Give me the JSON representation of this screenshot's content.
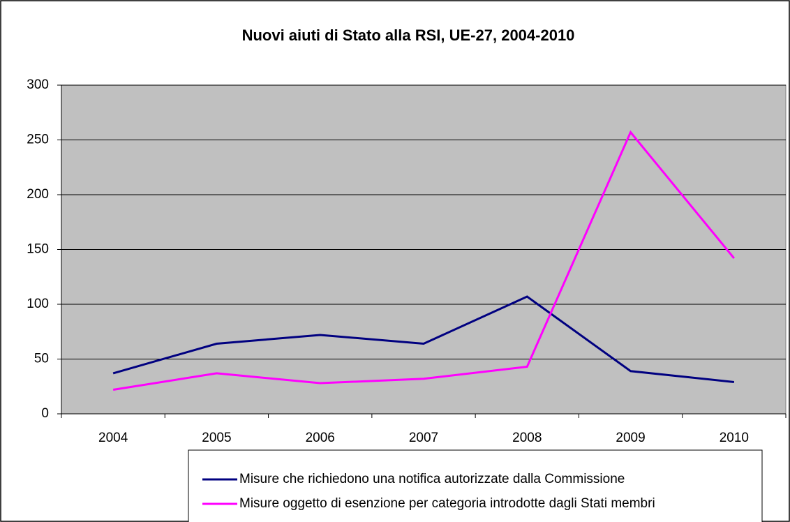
{
  "chart_data": {
    "type": "line",
    "title": "Nuovi aiuti di Stato alla RSI, UE-27, 2004-2010",
    "categories": [
      "2004",
      "2005",
      "2006",
      "2007",
      "2008",
      "2009",
      "2010"
    ],
    "series": [
      {
        "name": "Misure che richiedono una notifica autorizzate dalla Commissione",
        "color": "#000080",
        "values": [
          37,
          64,
          72,
          64,
          107,
          39,
          29
        ]
      },
      {
        "name": "Misure oggetto di esenzione per categoria introdotte dagli Stati membri",
        "color": "#ff00ff",
        "values": [
          22,
          37,
          28,
          32,
          43,
          257,
          142
        ]
      }
    ],
    "ylim": [
      0,
      300
    ],
    "yticks": [
      0,
      50,
      100,
      150,
      200,
      250,
      300
    ],
    "grid": true,
    "plot_background": "#c0c0c0",
    "legend": "bottom"
  }
}
